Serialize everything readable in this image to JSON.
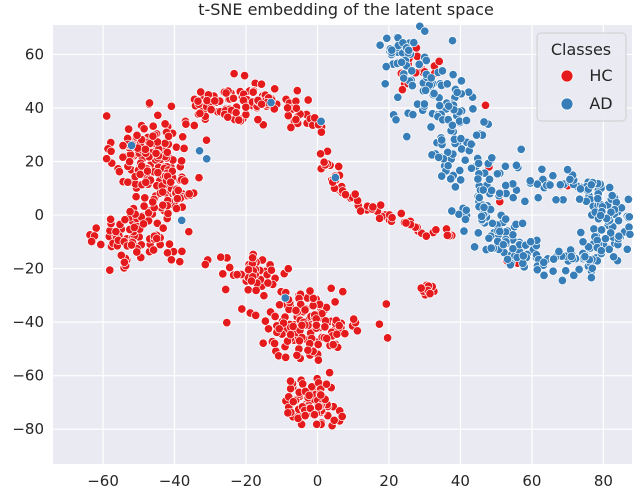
{
  "chart_data": {
    "type": "scatter",
    "title": "t-SNE embedding of the latent space",
    "xlabel": "",
    "ylabel": "",
    "xlim": [
      -74,
      88
    ],
    "ylim": [
      -93,
      71
    ],
    "xticks": [
      -60,
      -40,
      -20,
      0,
      20,
      40,
      60,
      80
    ],
    "yticks": [
      60,
      40,
      20,
      0,
      -20,
      -40,
      -60,
      -80
    ],
    "xtick_labels": [
      "−60",
      "−40",
      "−20",
      "0",
      "20",
      "40",
      "60",
      "80"
    ],
    "ytick_labels": [
      "60",
      "40",
      "20",
      "0",
      "−20",
      "−40",
      "−60",
      "−80"
    ],
    "grid": true,
    "background": "#eaeaf2",
    "legend": {
      "title": "Classes",
      "placement": "top-right"
    },
    "series": [
      {
        "name": "HC",
        "color": "#e41a1c",
        "regions": [
          {
            "center": [
              -47,
              22
            ],
            "spread": [
              9,
              14
            ],
            "count": 160
          },
          {
            "center": [
              -30,
              42
            ],
            "spread": [
              7,
              6
            ],
            "count": 40
          },
          {
            "center": [
              -50,
              -8
            ],
            "spread": [
              10,
              10
            ],
            "count": 90
          },
          {
            "center": [
              -40,
              8
            ],
            "spread": [
              6,
              10
            ],
            "count": 40
          },
          {
            "center": [
              -18,
              42
            ],
            "spread": [
              9,
              7
            ],
            "count": 50
          },
          {
            "center": [
              -3,
              38
            ],
            "spread": [
              6,
              8
            ],
            "count": 25
          },
          {
            "center": [
              -18,
              -22
            ],
            "spread": [
              9,
              6
            ],
            "count": 50
          },
          {
            "center": [
              -3,
              -40
            ],
            "spread": [
              14,
              12
            ],
            "count": 150
          },
          {
            "center": [
              -2,
              -70
            ],
            "spread": [
              7,
              8
            ],
            "count": 80
          },
          {
            "center": [
              31,
              -28
            ],
            "spread": [
              2,
              2
            ],
            "count": 15
          },
          {
            "center": [
              28,
              55
            ],
            "spread": [
              5,
              6
            ],
            "count": 20
          }
        ],
        "path": [
          [
            2,
            22
          ],
          [
            5,
            10
          ],
          [
            13,
            4
          ],
          [
            20,
            0
          ],
          [
            26,
            -4
          ],
          [
            33,
            -6
          ],
          [
            38,
            -6
          ],
          [
            40,
            -7
          ]
        ],
        "path_count": 60,
        "path_width": 2,
        "points": [
          [
            47,
            41
          ],
          [
            48,
            18
          ],
          [
            53,
            -17
          ],
          [
            56,
            -18
          ],
          [
            68,
            11
          ],
          [
            70,
            11
          ],
          [
            51,
            5
          ],
          [
            52,
            8
          ]
        ]
      },
      {
        "name": "AD",
        "color": "#377eb8",
        "path": [
          [
            22,
            64
          ],
          [
            27,
            55
          ],
          [
            33,
            44
          ],
          [
            38,
            32
          ],
          [
            43,
            22
          ],
          [
            46,
            10
          ],
          [
            49,
            -2
          ],
          [
            53,
            -10
          ],
          [
            60,
            -17
          ],
          [
            68,
            -18
          ],
          [
            77,
            -15
          ],
          [
            83,
            -7
          ],
          [
            83,
            0
          ],
          [
            78,
            7
          ],
          [
            70,
            11
          ],
          [
            62,
            11
          ]
        ],
        "path_count": 420,
        "path_width": 5,
        "widen": {
          "y_min": 10,
          "y_max": 55,
          "extra": 5
        },
        "points": [
          [
            -13,
            42
          ],
          [
            1,
            35
          ],
          [
            -52,
            26
          ],
          [
            -33,
            24
          ],
          [
            -31,
            21
          ],
          [
            -38,
            -2
          ],
          [
            5,
            14
          ],
          [
            -9,
            -31
          ],
          [
            41,
            -6
          ]
        ]
      }
    ]
  }
}
